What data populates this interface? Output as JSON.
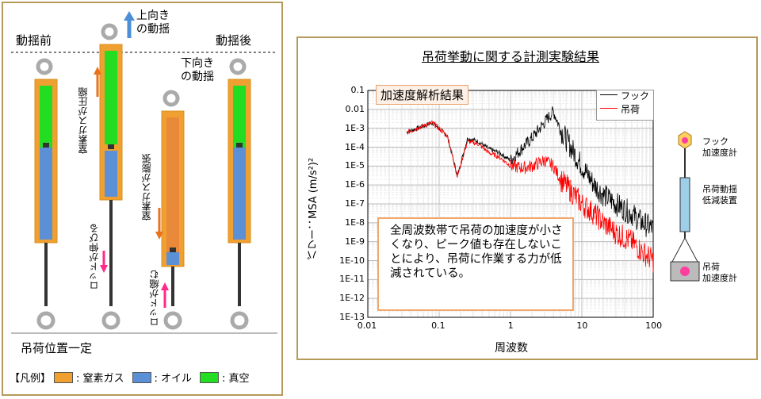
{
  "left_panel": {
    "before_label": "動揺前",
    "after_label": "動揺後",
    "up_motion": [
      "上向き",
      "の動揺"
    ],
    "down_motion": [
      "下向き",
      "の動揺"
    ],
    "gas_compressed": "窒素ガスが圧縮",
    "gas_expanded": "窒素ガスが膨張",
    "rod_extend": "ロッドが伸びる",
    "rod_shrink": "ロッドが縮む",
    "load_constant": "吊荷位置一定",
    "legend": {
      "prefix": "【凡例】",
      "nitrogen": ": 窒素ガス",
      "oil": ": オイル",
      "vacuum": ": 真空"
    }
  },
  "right_panel": {
    "title": "吊荷挙動に関する計測実験結果",
    "tag": "加速度解析結果",
    "legend": {
      "hook": "フック",
      "load": "吊荷"
    },
    "ylabel": "パワー：MSA (m/s²)²",
    "xlabel": "周波数",
    "annotation": "全周波数帯で吊荷の加速度が小さくなり、ピーク値も存在しないことにより、吊荷に作業する力が低減されている。",
    "device": {
      "hook_sensor": [
        "フック",
        "加速度計"
      ],
      "damper": [
        "吊荷動揺",
        "低減装置"
      ],
      "load_sensor": [
        "吊荷",
        "加速度計"
      ]
    }
  },
  "colors": {
    "nitrogen": "#f0a030",
    "oil": "#5b8fd6",
    "vacuum": "#22dd22",
    "hook_line": "#000000",
    "load_line": "#ff0000",
    "arrow_up": "#4a8fd8",
    "arrow_orange": "#e8731a",
    "arrow_pink": "#ff2a8a"
  },
  "chart_data": {
    "type": "line",
    "xscale": "log",
    "yscale": "log",
    "xlim": [
      0.01,
      100
    ],
    "ylim": [
      1e-13,
      0.1
    ],
    "xticks": [
      "0.01",
      "0.1",
      "1",
      "10",
      "100"
    ],
    "yticks": [
      "0.1",
      "0.01",
      "1E-3",
      "1E-4",
      "1E-5",
      "1E-6",
      "1E-7",
      "1E-8",
      "1E-9",
      "1E-10",
      "1E-11",
      "1E-12",
      "1E-13"
    ],
    "series": [
      {
        "name": "フック",
        "color": "#000000",
        "x": [
          0.035,
          0.08,
          0.13,
          0.18,
          0.25,
          0.35,
          0.5,
          0.7,
          1.0,
          1.5,
          2.0,
          3.0,
          4.0,
          5.0,
          7.0,
          10,
          15,
          20,
          30,
          50,
          70,
          100
        ],
        "y": [
          0.0006,
          0.002,
          0.0004,
          3e-06,
          0.0003,
          0.0002,
          8e-05,
          5e-05,
          2e-05,
          0.0001,
          0.0003,
          0.002,
          0.008,
          0.0009,
          0.0001,
          1e-05,
          1e-06,
          3e-07,
          1e-07,
          3e-08,
          1e-08,
          5e-09
        ]
      },
      {
        "name": "吊荷",
        "color": "#ff0000",
        "x": [
          0.035,
          0.08,
          0.13,
          0.18,
          0.25,
          0.35,
          0.5,
          0.7,
          1.0,
          1.5,
          2.0,
          3.0,
          4.0,
          5.0,
          7.0,
          10,
          15,
          20,
          30,
          50,
          70,
          100
        ],
        "y": [
          0.0006,
          0.002,
          0.0004,
          3e-06,
          0.0002,
          0.00015,
          5e-05,
          3e-05,
          1e-05,
          8e-06,
          1e-05,
          2e-05,
          1e-05,
          2e-06,
          5e-07,
          1e-07,
          3e-08,
          1e-08,
          3e-09,
          1e-09,
          3e-10,
          1e-10
        ]
      }
    ],
    "xlabel": "周波数",
    "ylabel": "パワー：MSA (m/s²)²"
  }
}
